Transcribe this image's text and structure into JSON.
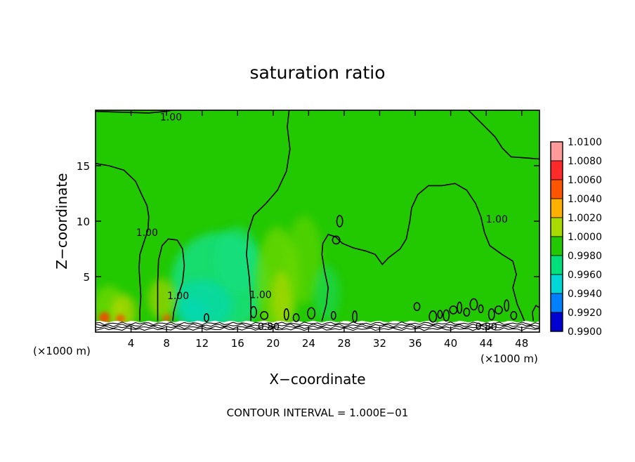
{
  "chart_data": {
    "type": "heatmap",
    "title": "saturation ratio",
    "xlabel": "X−coordinate",
    "ylabel": "Z−coordinate",
    "x_unit_left": "(×1000 m)",
    "x_unit_right": "(×1000 m)",
    "footer": "CONTOUR INTERVAL = 1.000E−01",
    "xlim": [
      0,
      50
    ],
    "ylim": [
      0,
      20
    ],
    "x_ticks": [
      4,
      8,
      12,
      16,
      20,
      24,
      28,
      32,
      36,
      40,
      44,
      48
    ],
    "y_ticks": [
      5,
      10,
      15
    ],
    "contour_labels": [
      {
        "text": "1.00",
        "x": 8.5,
        "z": 19.4
      },
      {
        "text": "1.00",
        "x": 5.8,
        "z": 9.0
      },
      {
        "text": "1.00",
        "x": 9.3,
        "z": 3.3
      },
      {
        "text": "1.00",
        "x": 18.6,
        "z": 3.4
      },
      {
        "text": "1.00",
        "x": 45.2,
        "z": 10.2
      },
      {
        "text": "0.80",
        "x": 19.5,
        "z": 0.5
      },
      {
        "text": "0.80",
        "x": 44.0,
        "z": 0.5
      }
    ],
    "colorbar": {
      "levels": [
        "1.0100",
        "1.0080",
        "1.0060",
        "1.0040",
        "1.0020",
        "1.0000",
        "0.9980",
        "0.9960",
        "0.9940",
        "0.9920",
        "0.9900"
      ],
      "colors": [
        "#ff9a9a",
        "#ff2a2a",
        "#ff5500",
        "#ffb000",
        "#a8dc00",
        "#22c800",
        "#00e07a",
        "#00d8d8",
        "#0080ff",
        "#0000d0",
        "#6a00aa"
      ]
    },
    "field_colors": {
      "background": "#22c800",
      "moist": "#70d800",
      "very_moist": "#c8d800",
      "hot": "#ff3c00",
      "dry": "#12e082",
      "drier": "#00d8c0"
    }
  }
}
